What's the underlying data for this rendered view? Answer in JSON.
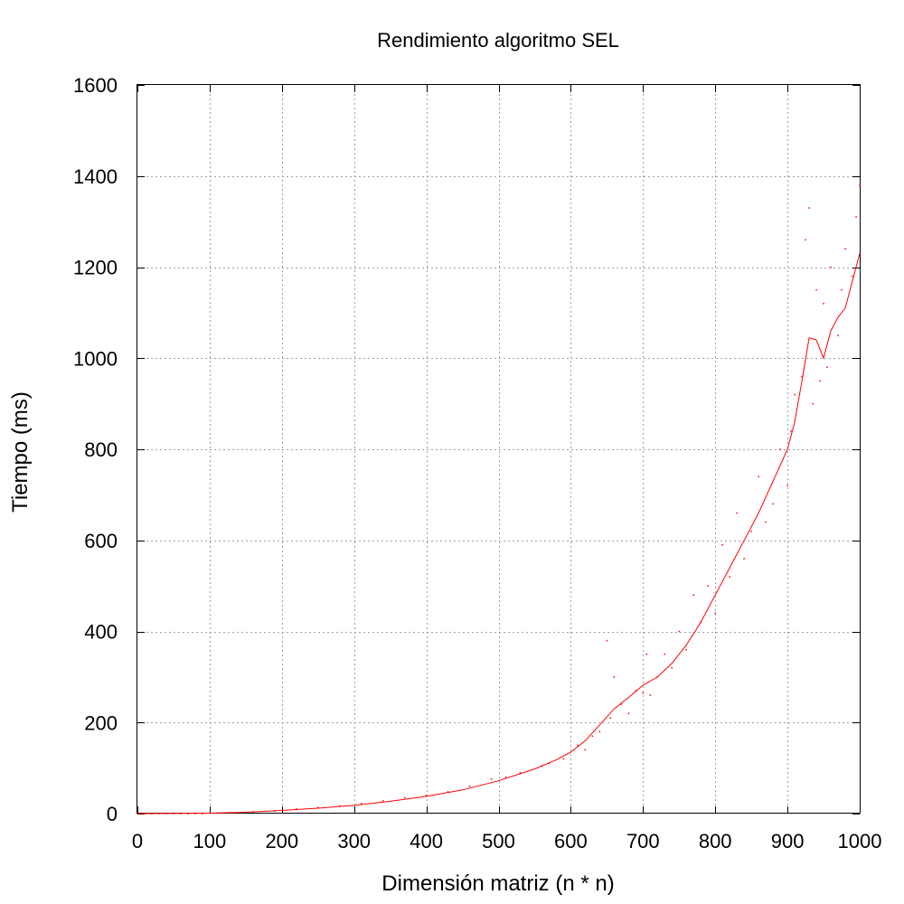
{
  "chart_data": {
    "type": "line",
    "title": "Rendimiento algoritmo SEL",
    "xlabel": "Dimensión matriz (n * n)",
    "ylabel": "Tiempo (ms)",
    "xlim": [
      0,
      1000
    ],
    "ylim": [
      0,
      1600
    ],
    "xticks": [
      0,
      100,
      200,
      300,
      400,
      500,
      600,
      700,
      800,
      900,
      1000
    ],
    "yticks": [
      0,
      200,
      400,
      600,
      800,
      1000,
      1200,
      1400,
      1600
    ],
    "grid": true,
    "colors": {
      "series": "#ff0000",
      "grid": "#a0a0a0"
    },
    "series": [
      {
        "style": "line",
        "x": [
          0,
          100,
          150,
          200,
          250,
          300,
          350,
          400,
          450,
          500,
          550,
          580,
          600,
          620,
          640,
          660,
          680,
          700,
          720,
          740,
          760,
          780,
          800,
          820,
          840,
          860,
          880,
          900,
          910,
          920,
          930,
          940,
          950,
          960,
          970,
          980,
          990,
          1000
        ],
        "y": [
          0,
          1,
          3,
          7,
          12,
          18,
          27,
          38,
          52,
          72,
          98,
          118,
          135,
          160,
          195,
          230,
          255,
          282,
          300,
          330,
          370,
          420,
          480,
          540,
          600,
          660,
          730,
          800,
          860,
          950,
          1045,
          1040,
          1000,
          1060,
          1090,
          1110,
          1170,
          1230
        ]
      },
      {
        "style": "points",
        "x": [
          0,
          10,
          20,
          30,
          40,
          50,
          60,
          70,
          80,
          90,
          110,
          130,
          160,
          190,
          220,
          250,
          280,
          310,
          340,
          370,
          400,
          430,
          460,
          490,
          510,
          530,
          560,
          570,
          590,
          610,
          620,
          630,
          640,
          650,
          655,
          660,
          670,
          680,
          690,
          700,
          705,
          710,
          720,
          730,
          740,
          750,
          760,
          770,
          780,
          790,
          800,
          810,
          820,
          830,
          840,
          850,
          860,
          870,
          880,
          890,
          900,
          905,
          910,
          920,
          925,
          930,
          935,
          940,
          945,
          950,
          955,
          960,
          970,
          975,
          980,
          990,
          995,
          1000
        ],
        "y": [
          0,
          0,
          0,
          0,
          0,
          0,
          0,
          0,
          0,
          0,
          1,
          2,
          4,
          6,
          10,
          13,
          17,
          22,
          28,
          35,
          40,
          48,
          60,
          76,
          80,
          90,
          105,
          110,
          120,
          150,
          140,
          170,
          180,
          380,
          210,
          300,
          240,
          220,
          270,
          265,
          350,
          260,
          300,
          350,
          320,
          400,
          360,
          480,
          420,
          500,
          440,
          590,
          520,
          660,
          560,
          620,
          740,
          640,
          680,
          800,
          720,
          840,
          920,
          960,
          1260,
          1330,
          900,
          1150,
          950,
          1120,
          980,
          1200,
          1050,
          1150,
          1240,
          1180,
          1310,
          1380
        ]
      }
    ]
  }
}
